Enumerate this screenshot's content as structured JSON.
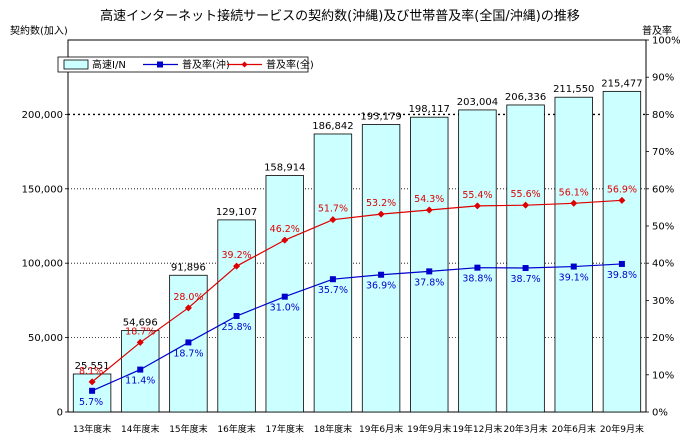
{
  "chart_data": {
    "type": "bar",
    "title": "高速インターネット接続サービスの契約数(沖縄)及び世帯普及率(全国/沖縄)の推移",
    "ylabel_left": "契約数(加入)",
    "ylabel_right": "普及率",
    "categories": [
      "13年度末",
      "14年度末",
      "15年度末",
      "16年度末",
      "17年度末",
      "18年度末",
      "19年6月末",
      "19年9月末",
      "19年12月末",
      "20年3月末",
      "20年6月末",
      "20年9月末"
    ],
    "left_ticks": [
      "0",
      "50,000",
      "100,000",
      "150,000",
      "200,000"
    ],
    "right_ticks": [
      "0%",
      "10%",
      "20%",
      "30%",
      "40%",
      "50%",
      "60%",
      "70%",
      "80%",
      "90%",
      "100%"
    ],
    "ylim_left": [
      0,
      250000
    ],
    "ylim_right": [
      0,
      100
    ],
    "legend_position": "top-left",
    "colors": {
      "bar_fill": "#ccffff",
      "bar_stroke": "#000000",
      "okinawa": "#0000cc",
      "national": "#dd0000"
    },
    "series": [
      {
        "name": "高速I/N",
        "kind": "bar",
        "values": [
          25551,
          54696,
          91896,
          129107,
          158914,
          186842,
          193179,
          198117,
          203004,
          206336,
          211550,
          215477
        ],
        "labels": [
          "25,551",
          "54,696",
          "91,896",
          "129,107",
          "158,914",
          "186,842",
          "193,179",
          "198,117",
          "203,004",
          "206,336",
          "211,550",
          "215,477"
        ]
      },
      {
        "name": "普及率(沖)",
        "kind": "line",
        "axis": "right",
        "values": [
          5.7,
          11.4,
          18.7,
          25.8,
          31.0,
          35.7,
          36.9,
          37.8,
          38.8,
          38.7,
          39.1,
          39.8
        ],
        "labels": [
          "5.7%",
          "11.4%",
          "18.7%",
          "25.8%",
          "31.0%",
          "35.7%",
          "36.9%",
          "37.8%",
          "38.8%",
          "38.7%",
          "39.1%",
          "39.8%"
        ]
      },
      {
        "name": "普及率(全)",
        "kind": "line",
        "axis": "right",
        "values": [
          8.1,
          18.7,
          28.0,
          39.2,
          46.2,
          51.7,
          53.2,
          54.3,
          55.4,
          55.6,
          56.1,
          56.9
        ],
        "labels": [
          "8.1%",
          "18.7%",
          "28.0%",
          "39.2%",
          "46.2%",
          "51.7%",
          "53.2%",
          "54.3%",
          "55.4%",
          "55.6%",
          "56.1%",
          "56.9%"
        ]
      }
    ]
  }
}
